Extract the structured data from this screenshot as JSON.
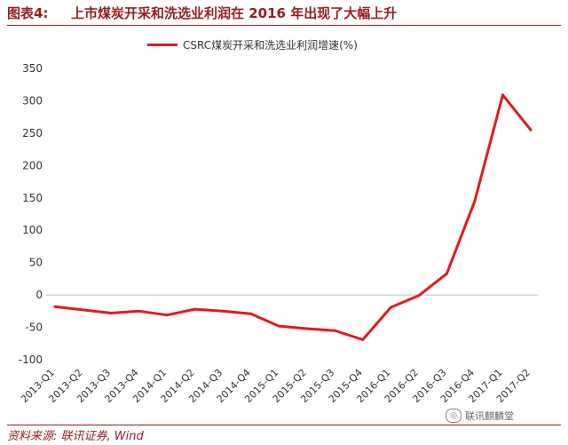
{
  "header": {
    "figure_label": "图表4:",
    "title": "上市煤炭开采和洗选业利润在 2016 年出现了大幅上升"
  },
  "footer": {
    "source": "资料来源: 联讯证券, Wind",
    "watermark": "联讯麒麟堂"
  },
  "chart_data": {
    "type": "line",
    "title": "上市煤炭开采和洗选业利润在 2016 年出现了大幅上升",
    "xlabel": "",
    "ylabel": "",
    "ylim": [
      -100,
      350
    ],
    "yticks": [
      -100,
      -50,
      0,
      50,
      100,
      150,
      200,
      250,
      300,
      350
    ],
    "grid": false,
    "legend_position": "top",
    "categories": [
      "2013-Q1",
      "2013-Q2",
      "2013-Q3",
      "2013-Q4",
      "2014-Q1",
      "2014-Q2",
      "2014-Q3",
      "2014-Q4",
      "2015-Q1",
      "2015-Q2",
      "2015-Q3",
      "2015-Q4",
      "2016-Q1",
      "2016-Q2",
      "2016-Q3",
      "2016-Q4",
      "2017-Q1",
      "2017-Q2"
    ],
    "series": [
      {
        "name": "CSRC煤炭开采和洗选业利润增速(%)",
        "color": "#e31a1c",
        "values": [
          -18,
          -23,
          -28,
          -25,
          -31,
          -22,
          -25,
          -29,
          -48,
          -52,
          -55,
          -69,
          -19,
          -1,
          33,
          145,
          309,
          255
        ]
      }
    ]
  }
}
